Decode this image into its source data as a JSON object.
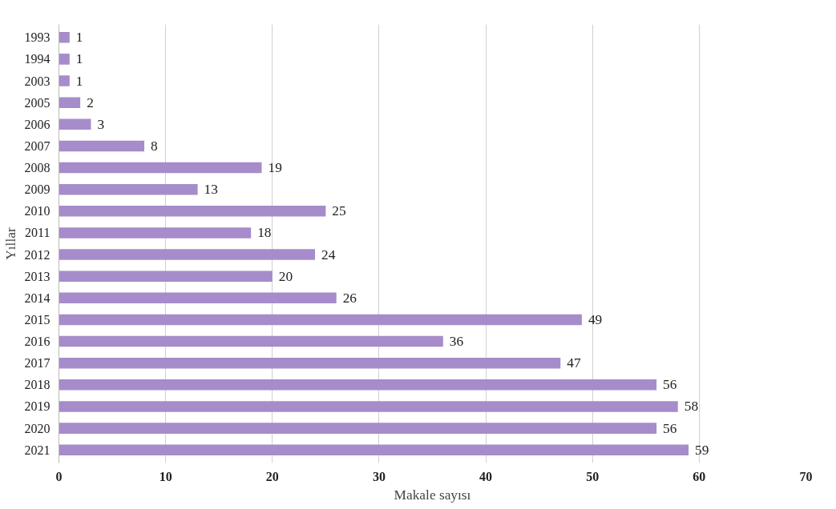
{
  "chart_data": {
    "type": "bar",
    "orientation": "horizontal",
    "xlabel": "Makale sayısı",
    "ylabel": "Yıllar",
    "categories": [
      "1993",
      "1994",
      "2003",
      "2005",
      "2006",
      "2007",
      "2008",
      "2009",
      "2010",
      "2011",
      "2012",
      "2013",
      "2014",
      "2015",
      "2016",
      "2017",
      "2018",
      "2019",
      "2020",
      "2021"
    ],
    "values": [
      1,
      1,
      1,
      2,
      3,
      8,
      19,
      13,
      25,
      18,
      24,
      20,
      26,
      49,
      36,
      47,
      56,
      58,
      56,
      59
    ],
    "color": "#a68cca",
    "xlim": [
      0,
      70
    ],
    "xticks": [
      0,
      10,
      20,
      30,
      40,
      50,
      60,
      70
    ],
    "grid": "x",
    "data_labels": true
  }
}
